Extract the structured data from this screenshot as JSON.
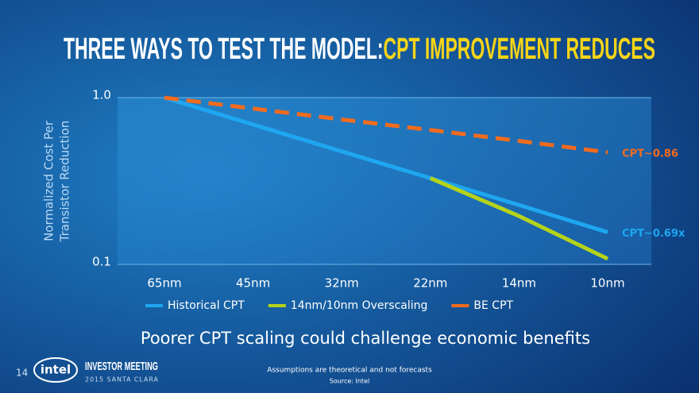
{
  "chart_data": {
    "type": "line",
    "title": [
      "THREE WAYS TO TEST THE MODEL:",
      "CPT IMPROVEMENT REDUCES"
    ],
    "title_colors": [
      "#ffffff",
      "#f7d417"
    ],
    "ylabel": [
      "Normalized Cost Per",
      "Transistor Reduction"
    ],
    "categories": [
      "65nm",
      "45nm",
      "32nm",
      "22nm",
      "14nm",
      "10nm"
    ],
    "log_scale": true,
    "ylim": [
      0.1,
      1.0
    ],
    "yticks": [
      0.1,
      {
        "value": 1.0,
        "label": "1.0"
      }
    ],
    "grid": true,
    "series": [
      {
        "name": "Historical CPT",
        "color": "#1ea7f0",
        "dashed": false,
        "values": [
          1.0,
          0.69,
          0.476,
          0.329,
          0.227,
          0.156
        ],
        "annotation": "CPT~0.69x"
      },
      {
        "name": "14nm/10nm Overscaling",
        "color": "#b5d31a",
        "dashed": false,
        "values": [
          null,
          null,
          null,
          0.329,
          0.195,
          0.108
        ]
      },
      {
        "name": "BE CPT",
        "color": "#f26b1d",
        "dashed": true,
        "values": [
          1.0,
          0.86,
          0.74,
          0.64,
          0.55,
          0.47
        ],
        "annotation": "CPT~0.86"
      }
    ],
    "legend": "bottom"
  },
  "footer": {
    "message": "Poorer CPT scaling could challenge economic benefits",
    "page_number": "14",
    "logo": "intel",
    "event": "INVESTOR MEETING",
    "event_sub": "2015 SANTA CLARA",
    "disclaimer": "Assumptions are theoretical and not forecasts",
    "source": "Source: Intel"
  }
}
